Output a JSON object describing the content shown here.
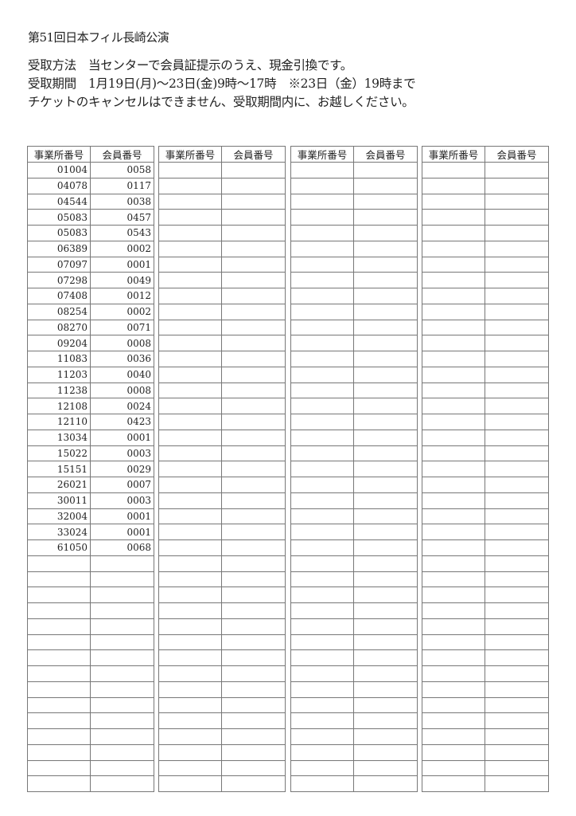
{
  "title": "第51回日本フィル長崎公演",
  "notice": {
    "method": "受取方法　当センターで会員証提示のうえ、現金引換です。",
    "period": "受取期間　1月19日(月)～23日(金)9時～17時　※23日（金）19時まで",
    "cancel": "チケットのキャンセルはできません、受取期間内に、お越しください。"
  },
  "table": {
    "headers": [
      "事業所番号",
      "会員番号"
    ],
    "rows": [
      [
        "01004",
        "0058"
      ],
      [
        "04078",
        "0117"
      ],
      [
        "04544",
        "0038"
      ],
      [
        "05083",
        "0457"
      ],
      [
        "05083",
        "0543"
      ],
      [
        "06389",
        "0002"
      ],
      [
        "07097",
        "0001"
      ],
      [
        "07298",
        "0049"
      ],
      [
        "07408",
        "0012"
      ],
      [
        "08254",
        "0002"
      ],
      [
        "08270",
        "0071"
      ],
      [
        "09204",
        "0008"
      ],
      [
        "11083",
        "0036"
      ],
      [
        "11203",
        "0040"
      ],
      [
        "11238",
        "0008"
      ],
      [
        "12108",
        "0024"
      ],
      [
        "12110",
        "0423"
      ],
      [
        "13034",
        "0001"
      ],
      [
        "15022",
        "0003"
      ],
      [
        "15151",
        "0029"
      ],
      [
        "26021",
        "0007"
      ],
      [
        "30011",
        "0003"
      ],
      [
        "32004",
        "0001"
      ],
      [
        "33024",
        "0001"
      ],
      [
        "61050",
        "0068"
      ]
    ]
  }
}
